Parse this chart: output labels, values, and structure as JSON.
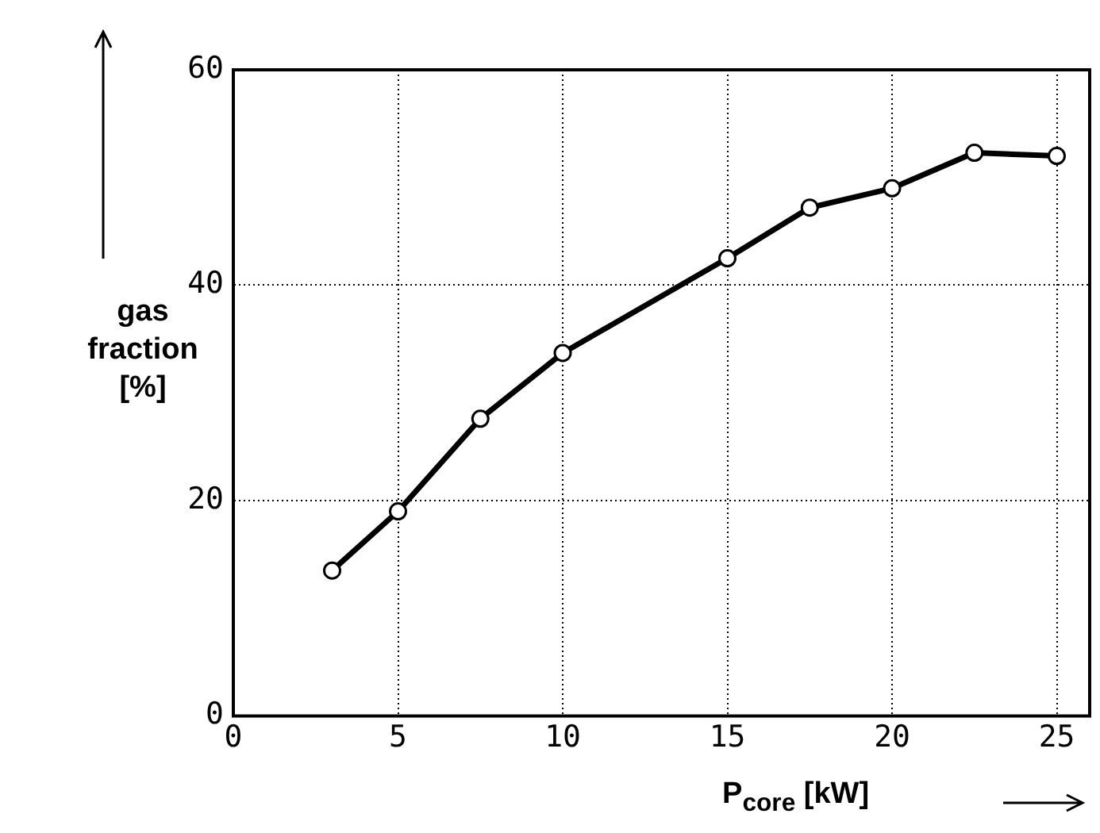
{
  "chart_data": {
    "type": "line",
    "xlabel": "P$_{core}$ [kW]",
    "ylabel": "gas fraction [%]",
    "x": [
      3,
      5,
      7.5,
      10,
      15,
      17.5,
      20,
      22.5,
      25
    ],
    "series": [
      {
        "color": "#000000",
        "values": [
          13.5,
          19,
          27.6,
          33.7,
          42.5,
          47.2,
          49,
          52.3,
          52
        ]
      }
    ],
    "xlim": [
      0,
      26
    ],
    "ylim": [
      0,
      60
    ],
    "xticks": [
      0,
      5,
      10,
      15,
      20,
      25
    ],
    "yticks": [
      0,
      20,
      40,
      60
    ],
    "grid": true,
    "marker": "circle",
    "line_style": "solid"
  }
}
